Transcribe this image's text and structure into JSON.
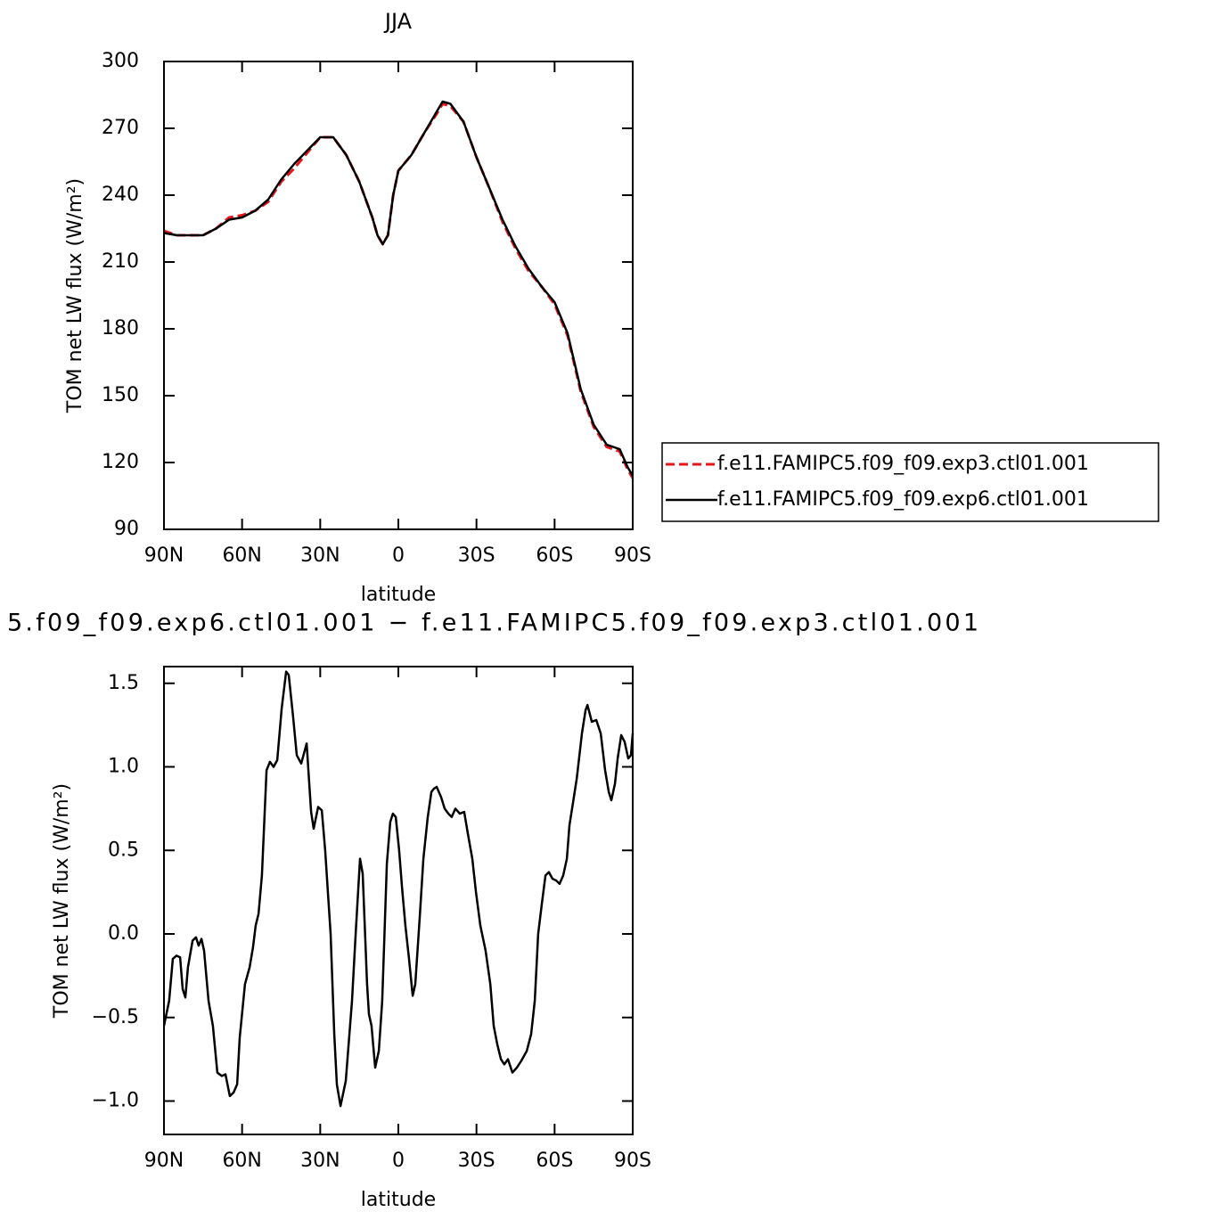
{
  "chart_data": [
    {
      "type": "line",
      "title": "JJA",
      "xlabel": "latitude",
      "ylabel": "TOM net LW flux (W/m²)",
      "x": [
        90,
        85,
        80,
        75,
        70,
        65,
        60,
        55,
        50,
        45,
        40,
        35,
        30,
        25,
        20,
        15,
        10,
        8,
        6,
        4,
        2,
        0,
        -5,
        -10,
        -15,
        -17,
        -20,
        -25,
        -30,
        -35,
        -40,
        -45,
        -50,
        -55,
        -60,
        -65,
        -70,
        -75,
        -80,
        -85,
        -88,
        -90
      ],
      "series": [
        {
          "name": "f.e11.FAMIPC5.f09_f09.exp3.ctl01.001",
          "color": "#e8141a",
          "dash": true,
          "values": [
            224,
            222,
            222,
            222,
            225,
            230,
            231,
            233,
            237,
            246,
            252,
            259,
            266,
            266,
            258,
            246,
            230,
            222,
            218,
            222,
            240,
            251,
            258,
            268,
            277,
            281,
            280,
            273,
            257,
            243,
            228,
            216,
            206,
            199,
            191,
            177,
            152,
            136,
            127,
            125,
            117,
            113
          ]
        },
        {
          "name": "f.e11.FAMIPC5.f09_f09.exp6.ctl01.001",
          "color": "#000000",
          "values": [
            223,
            222,
            222,
            222,
            225,
            229,
            230,
            233,
            238,
            247,
            254,
            260,
            266,
            266,
            258,
            246,
            230,
            222,
            218,
            222,
            240,
            251,
            258,
            268,
            278,
            282,
            281,
            273,
            257,
            243,
            229,
            217,
            207,
            199,
            192,
            178,
            153,
            137,
            128,
            126,
            118,
            114
          ]
        }
      ],
      "xlim": [
        90,
        -90
      ],
      "xticks": [
        {
          "value": 90,
          "label": "90N"
        },
        {
          "value": 60,
          "label": "60N"
        },
        {
          "value": 30,
          "label": "30N"
        },
        0,
        {
          "value": -30,
          "label": "30S"
        },
        {
          "value": -60,
          "label": "60S"
        },
        {
          "value": -90,
          "label": "90S"
        }
      ],
      "ylim": [
        90,
        300
      ],
      "yticks": [
        90,
        120,
        150,
        180,
        210,
        240,
        270,
        300
      ],
      "legend": "right"
    },
    {
      "type": "line",
      "title": "5.f09_f09.exp6.ctl01.001 − f.e11.FAMIPC5.f09_f09.exp3.ctl01.001",
      "xlabel": "latitude",
      "ylabel": "TOM net LW flux (W/m²)",
      "x": [
        90,
        88,
        86.6,
        85.2,
        83.8,
        82.8,
        81.8,
        80.8,
        79,
        77.7,
        76.7,
        75.6,
        74.6,
        72.9,
        71.2,
        69.5,
        67.8,
        66.4,
        64.7,
        63.3,
        61.9,
        60.9,
        58.9,
        57.1,
        55.8,
        54.8,
        53.7,
        52.4,
        50.6,
        49.3,
        47.9,
        46.5,
        44.8,
        43.1,
        42.1,
        40.4,
        39,
        37.3,
        35.2,
        33.5,
        32.5,
        30.8,
        29.4,
        28.1,
        26,
        24.6,
        23.6,
        22.2,
        20.2,
        17.8,
        16.4,
        14.7,
        13.7,
        12,
        11.3,
        10.3,
        8.9,
        7.5,
        6.2,
        4.4,
        3.1,
        2.1,
        1,
        -0.3,
        -1.4,
        -2.7,
        -4.1,
        -5.5,
        -6.5,
        -8.2,
        -9.6,
        -11.3,
        -12.7,
        -13.7,
        -14.7,
        -16.4,
        -17.8,
        -19.2,
        -20.5,
        -21.9,
        -23.6,
        -25.3,
        -26.7,
        -28.4,
        -29.8,
        -31.5,
        -33.5,
        -35.3,
        -36.6,
        -38,
        -39.4,
        -40.7,
        -42.1,
        -43.8,
        -45.5,
        -47.2,
        -49.3,
        -51,
        -52.4,
        -53.7,
        -55.1,
        -56.5,
        -57.8,
        -59.2,
        -60.6,
        -61.9,
        -63.3,
        -64.7,
        -65.7,
        -67.4,
        -68.5,
        -70.5,
        -71.9,
        -72.6,
        -74.3,
        -76,
        -77.7,
        -79.4,
        -80.8,
        -81.8,
        -83.2,
        -84.2,
        -85.6,
        -86.9,
        -88.3,
        -89.3,
        -90
      ],
      "values": [
        -0.55,
        -0.4,
        -0.15,
        -0.13,
        -0.14,
        -0.33,
        -0.38,
        -0.2,
        -0.04,
        -0.02,
        -0.07,
        -0.03,
        -0.1,
        -0.4,
        -0.55,
        -0.83,
        -0.85,
        -0.84,
        -0.97,
        -0.95,
        -0.9,
        -0.62,
        -0.3,
        -0.2,
        -0.08,
        0.05,
        0.12,
        0.35,
        0.98,
        1.03,
        1.0,
        1.04,
        1.35,
        1.57,
        1.55,
        1.3,
        1.07,
        1.02,
        1.14,
        0.73,
        0.63,
        0.76,
        0.74,
        0.5,
        0.0,
        -0.6,
        -0.9,
        -1.03,
        -0.88,
        -0.4,
        0.0,
        0.45,
        0.36,
        -0.3,
        -0.48,
        -0.55,
        -0.8,
        -0.7,
        -0.4,
        0.42,
        0.67,
        0.72,
        0.7,
        0.5,
        0.28,
        0.05,
        -0.15,
        -0.37,
        -0.3,
        0.1,
        0.45,
        0.7,
        0.85,
        0.87,
        0.88,
        0.82,
        0.75,
        0.72,
        0.7,
        0.75,
        0.72,
        0.73,
        0.6,
        0.45,
        0.25,
        0.05,
        -0.1,
        -0.3,
        -0.55,
        -0.66,
        -0.75,
        -0.78,
        -0.75,
        -0.83,
        -0.8,
        -0.76,
        -0.7,
        -0.6,
        -0.4,
        0.0,
        0.18,
        0.35,
        0.37,
        0.33,
        0.32,
        0.3,
        0.35,
        0.45,
        0.65,
        0.82,
        0.93,
        1.2,
        1.34,
        1.37,
        1.27,
        1.28,
        1.2,
        0.98,
        0.85,
        0.8,
        0.9,
        1.05,
        1.19,
        1.15,
        1.05,
        1.07,
        1.2
      ],
      "color": "#000000",
      "xlim": [
        90,
        -90
      ],
      "xticks": [
        {
          "value": 90,
          "label": "90N"
        },
        {
          "value": 60,
          "label": "60N"
        },
        {
          "value": 30,
          "label": "30N"
        },
        0,
        {
          "value": -30,
          "label": "30S"
        },
        {
          "value": -60,
          "label": "60S"
        },
        {
          "value": -90,
          "label": "90S"
        }
      ],
      "ylim": [
        -1.2,
        1.6
      ],
      "yticks": [
        {
          "value": -1,
          "label": "−1.0"
        },
        {
          "value": -0.5,
          "label": "−0.5"
        },
        {
          "value": 0,
          "label": "0.0"
        },
        0.5,
        {
          "value": 1,
          "label": "1.0"
        },
        1.5
      ]
    }
  ]
}
